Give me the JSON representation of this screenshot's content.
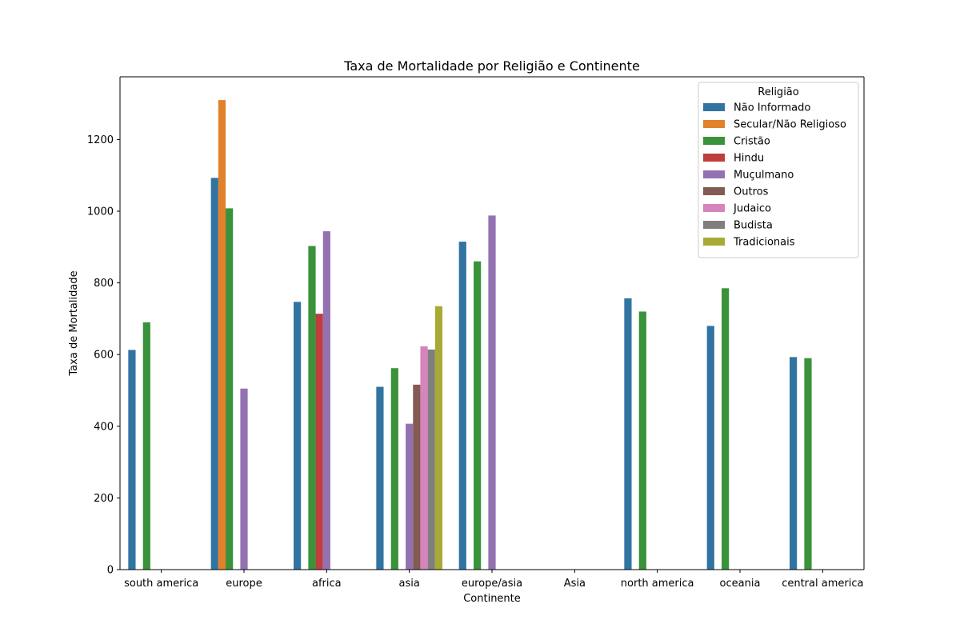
{
  "chart_data": {
    "type": "bar",
    "title": "Taxa de Mortalidade por Religião e Continente",
    "xlabel": "Continente",
    "ylabel": "Taxa de Mortalidade",
    "ylim": [
      0,
      1375
    ],
    "yticks": [
      0,
      200,
      400,
      600,
      800,
      1000,
      1200
    ],
    "grid": false,
    "legend_title": "Religião",
    "legend_position": "top-right",
    "categories": [
      "south america",
      "europe",
      "africa",
      "asia",
      "europe/asia",
      "Asia",
      "north america",
      "oceania",
      "central america"
    ],
    "series": [
      {
        "name": "Não Informado",
        "color": "#3274a1",
        "values": [
          613,
          1093,
          747,
          510,
          915,
          null,
          757,
          680,
          593
        ]
      },
      {
        "name": "Secular/Não Religioso",
        "color": "#e1812c",
        "values": [
          null,
          1310,
          null,
          null,
          null,
          null,
          null,
          null,
          null
        ]
      },
      {
        "name": "Cristão",
        "color": "#3a923a",
        "values": [
          690,
          1008,
          903,
          562,
          860,
          null,
          720,
          785,
          590
        ]
      },
      {
        "name": "Hindu",
        "color": "#c03d3e",
        "values": [
          null,
          null,
          714,
          null,
          null,
          null,
          null,
          null,
          null
        ]
      },
      {
        "name": "Muçulmano",
        "color": "#9372b2",
        "values": [
          null,
          505,
          944,
          407,
          988,
          null,
          null,
          null,
          null
        ]
      },
      {
        "name": "Outros",
        "color": "#845b53",
        "values": [
          null,
          null,
          null,
          516,
          null,
          null,
          null,
          null,
          null
        ]
      },
      {
        "name": "Judaico",
        "color": "#d684bd",
        "values": [
          null,
          null,
          null,
          623,
          null,
          null,
          null,
          null,
          null
        ]
      },
      {
        "name": "Budista",
        "color": "#7f7f7f",
        "values": [
          null,
          null,
          null,
          614,
          null,
          null,
          null,
          null,
          null
        ]
      },
      {
        "name": "Tradicionais",
        "color": "#a9aa35",
        "values": [
          null,
          null,
          null,
          735,
          null,
          null,
          null,
          null,
          null
        ]
      }
    ]
  }
}
